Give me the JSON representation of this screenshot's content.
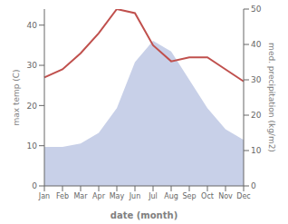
{
  "chart_data": {
    "type": "line",
    "categories": [
      "Jan",
      "Feb",
      "Mar",
      "Apr",
      "May",
      "Jun",
      "Jul",
      "Aug",
      "Sep",
      "Oct",
      "Nov",
      "Dec"
    ],
    "xlabel": "date (month)",
    "ylabel": "max temp (C)",
    "y2label": "med. precipitation (kg/m2)",
    "series": [
      {
        "type": "area",
        "axis": "y2",
        "color": "#c8d0e8",
        "values": [
          11,
          11,
          12,
          15,
          22,
          35,
          41,
          38,
          30,
          22,
          16,
          13
        ]
      },
      {
        "type": "line",
        "color": "#c0504d",
        "values": [
          27,
          29,
          33,
          38,
          44,
          43,
          35,
          31,
          32,
          32,
          29,
          26
        ]
      }
    ],
    "ylim": [
      0,
      44
    ],
    "yticks": [
      0,
      10,
      20,
      30,
      40
    ],
    "y2lim": [
      0,
      50
    ],
    "y2ticks": [
      0,
      10,
      20,
      30,
      40,
      50
    ],
    "grid": false
  }
}
